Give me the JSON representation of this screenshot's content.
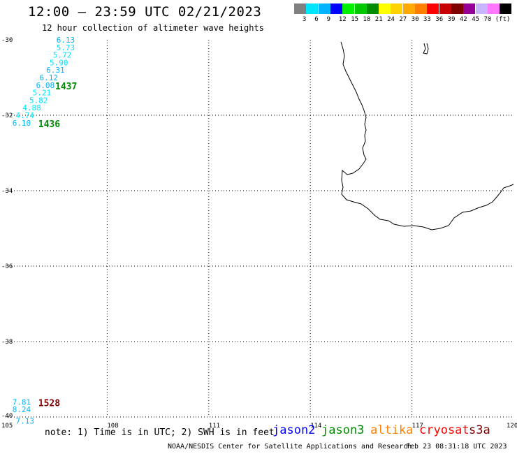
{
  "title": "12:00 – 23:59 UTC 02/21/2023",
  "subtitle": "12 hour collection of altimeter wave heights",
  "color_scale": {
    "colors": [
      "#808080",
      "#00e5ff",
      "#00b4ff",
      "#0000ff",
      "#00f000",
      "#00c800",
      "#008c00",
      "#ffff00",
      "#ffd200",
      "#ffaa00",
      "#ff8000",
      "#ff0000",
      "#c80000",
      "#800000",
      "#960096",
      "#c8b4ff",
      "#ff78ff",
      "#000000"
    ],
    "labels": [
      "3",
      "6",
      "9",
      "12",
      "15",
      "18",
      "21",
      "24",
      "27",
      "30",
      "33",
      "36",
      "39",
      "42",
      "45",
      "70 (ft)"
    ]
  },
  "map": {
    "lon_ticks": [
      "105",
      "108",
      "111",
      "114",
      "117",
      "120"
    ],
    "lat_ticks": [
      "-30",
      "-32",
      "-34",
      "-36",
      "-38",
      "-40"
    ]
  },
  "observations": [
    {
      "value": "6.13",
      "lon": 106.5,
      "lat": -30.0,
      "color": "#00b4ff"
    },
    {
      "value": "5.73",
      "lon": 106.5,
      "lat": -30.2,
      "color": "#00e5ff"
    },
    {
      "value": "5.72",
      "lon": 106.4,
      "lat": -30.4,
      "color": "#00e5ff"
    },
    {
      "value": "5.90",
      "lon": 106.3,
      "lat": -30.6,
      "color": "#00e5ff"
    },
    {
      "value": "6.31",
      "lon": 106.2,
      "lat": -30.8,
      "color": "#00b4ff"
    },
    {
      "value": "6.12",
      "lon": 106.0,
      "lat": -31.0,
      "color": "#00b4ff"
    },
    {
      "value": "6.08",
      "lon": 105.9,
      "lat": -31.2,
      "color": "#00b4ff"
    },
    {
      "value": "5.21",
      "lon": 105.8,
      "lat": -31.4,
      "color": "#00e5ff"
    },
    {
      "value": "5.82",
      "lon": 105.7,
      "lat": -31.6,
      "color": "#00e5ff"
    },
    {
      "value": "4.88",
      "lon": 105.5,
      "lat": -31.8,
      "color": "#00e5ff"
    },
    {
      "value": "4.74",
      "lon": 105.3,
      "lat": -32.0,
      "color": "#00e5ff"
    },
    {
      "value": "6.10",
      "lon": 105.2,
      "lat": -32.2,
      "color": "#00b4ff"
    },
    {
      "value": "7.81",
      "lon": 105.2,
      "lat": -39.6,
      "color": "#00b4ff"
    },
    {
      "value": "8.24",
      "lon": 105.2,
      "lat": -39.8,
      "color": "#00b4ff"
    },
    {
      "value": "7.13",
      "lon": 105.3,
      "lat": -40.1,
      "color": "#00b4ff"
    }
  ],
  "pass_labels": [
    {
      "text": "1437",
      "lon": 106.3,
      "lat": -31.2,
      "color": "#008c00"
    },
    {
      "text": "1436",
      "lon": 105.8,
      "lat": -32.2,
      "color": "#008c00"
    },
    {
      "text": "1528",
      "lon": 105.8,
      "lat": -39.6,
      "color": "#800000"
    }
  ],
  "note": "note: 1) Time is in UTC; 2) SWH is in feet",
  "satellites": [
    {
      "name": "jason2",
      "color": "#0000ff"
    },
    {
      "name": "jason3",
      "color": "#008c00"
    },
    {
      "name": "altika",
      "color": "#ff8000"
    },
    {
      "name": "cryosat",
      "color": "#ff0000"
    },
    {
      "name": "s3a",
      "color": "#800000"
    }
  ],
  "footer": "NOAA/NESDIS Center for Satellite Applications and Research",
  "footer_date": "Feb 23 08:31:18 UTC 2023"
}
